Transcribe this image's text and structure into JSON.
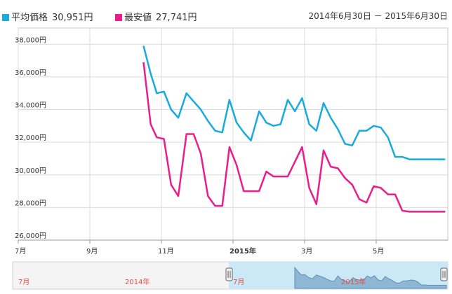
{
  "legend": [
    {
      "name": "平均価格",
      "value": "30,951円",
      "color": "#1aabde"
    },
    {
      "name": "最安値",
      "value": "27,741円",
      "color": "#e91e8c"
    }
  ],
  "date_range": "2014年6月30日 － 2015年6月30日",
  "navigator": {
    "labels": [
      "7月",
      "2014年",
      "7月",
      "2015年"
    ]
  },
  "chart_data": {
    "type": "line",
    "ylim": [
      26000,
      39000
    ],
    "ytick_values": [
      26000,
      28000,
      30000,
      32000,
      34000,
      36000,
      38000
    ],
    "yticks": [
      "26,000円",
      "28,000円",
      "30,000円",
      "32,000円",
      "34,000円",
      "36,000円",
      "38,000円"
    ],
    "xticks": [
      "7月",
      "9月",
      "11月",
      "2015年",
      "3月",
      "5月"
    ],
    "xtick_positions": [
      0,
      2,
      4,
      6,
      8,
      10
    ],
    "xlim": [
      0,
      12
    ],
    "x": [
      3.5,
      3.7,
      3.87,
      4.07,
      4.27,
      4.47,
      4.7,
      4.9,
      5.1,
      5.3,
      5.5,
      5.7,
      5.9,
      6.1,
      6.3,
      6.5,
      6.73,
      6.93,
      7.13,
      7.33,
      7.53,
      7.73,
      7.93,
      8.13,
      8.33,
      8.53,
      8.73,
      8.93,
      9.13,
      9.33,
      9.53,
      9.73,
      9.93,
      10.13,
      10.33,
      10.53,
      10.73,
      10.93,
      11.13,
      11.33,
      11.53,
      11.73,
      11.93
    ],
    "series": [
      {
        "name": "平均価格",
        "color": "#1aabde",
        "values": [
          37900,
          36200,
          35000,
          35100,
          34000,
          33500,
          35000,
          34500,
          34000,
          33300,
          32700,
          32600,
          34600,
          33200,
          32600,
          32100,
          33900,
          33200,
          33000,
          33100,
          34600,
          33900,
          34700,
          33100,
          32700,
          34400,
          33500,
          32800,
          31900,
          31800,
          32700,
          32700,
          33000,
          32900,
          32300,
          31100,
          31100,
          30950,
          30951,
          30951,
          30951,
          30951,
          30951
        ]
      },
      {
        "name": "最安値",
        "color": "#e91e8c",
        "values": [
          36900,
          33100,
          32300,
          32200,
          29400,
          28700,
          32500,
          32500,
          31300,
          28700,
          28100,
          28100,
          31700,
          30600,
          29000,
          29000,
          29000,
          30200,
          29900,
          29900,
          29900,
          30800,
          31700,
          29200,
          28200,
          31500,
          30500,
          30400,
          29800,
          29400,
          28500,
          28300,
          29300,
          29200,
          28800,
          28800,
          27800,
          27741,
          27741,
          27741,
          27741,
          27741,
          27741
        ]
      }
    ]
  }
}
